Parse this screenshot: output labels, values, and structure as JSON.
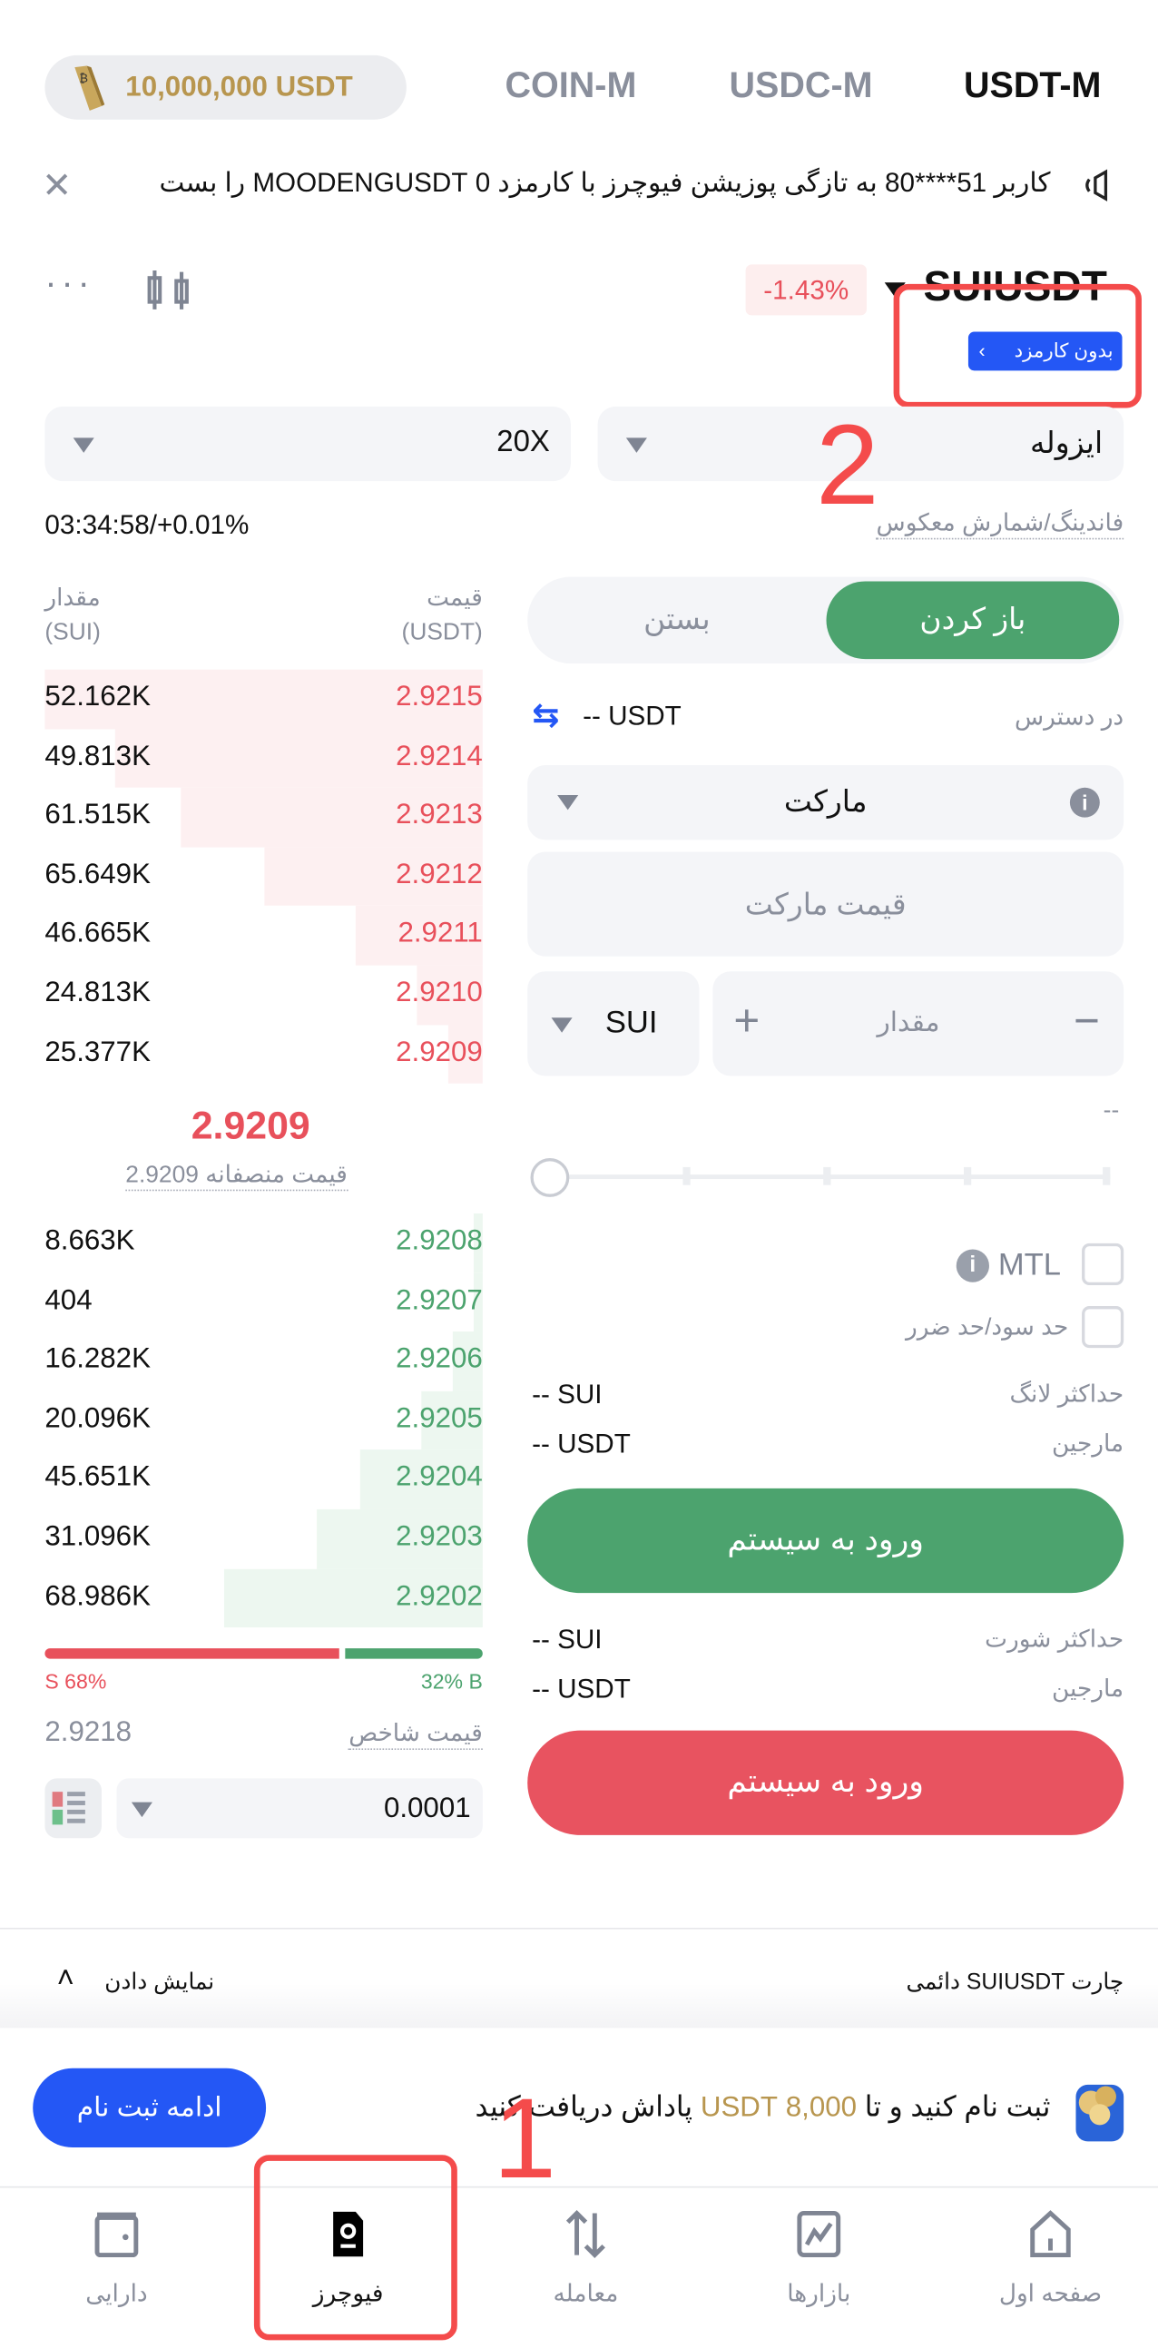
{
  "header": {
    "balance": "10,000,000 USDT",
    "tabs": [
      "COIN-M",
      "USDC-M",
      "USDT-M"
    ],
    "active_tab": "USDT-M"
  },
  "notice": {
    "text": "کاربر 51****80 به تازگی پوزیشن فیوچرز با کارمزد 0 MOODENGUSDT را بست"
  },
  "symbol": {
    "name": "SUIUSDT",
    "change": "-1.43%",
    "fee_badge": "بدون کارمزد"
  },
  "leverage": {
    "value": "20X"
  },
  "margin_mode": {
    "value": "ایزوله"
  },
  "funding": {
    "value": "03:34:58/+0.01%",
    "label": "فاندینگ/شمارش معکوس"
  },
  "orderbook": {
    "qty_header": "مقدار",
    "qty_unit": "(SUI)",
    "price_header": "قیمت",
    "price_unit": "(USDT)",
    "asks": [
      {
        "price": "2.9215",
        "qty": "52.162K",
        "depth": 1.0
      },
      {
        "price": "2.9214",
        "qty": "49.813K",
        "depth": 0.84
      },
      {
        "price": "2.9213",
        "qty": "61.515K",
        "depth": 0.69
      },
      {
        "price": "2.9212",
        "qty": "65.649K",
        "depth": 0.5
      },
      {
        "price": "2.9211",
        "qty": "46.665K",
        "depth": 0.29
      },
      {
        "price": "2.9210",
        "qty": "24.813K",
        "depth": 0.15
      },
      {
        "price": "2.9209",
        "qty": "25.377K",
        "depth": 0.08
      }
    ],
    "last_price": "2.9209",
    "fair_price_label": "قیمت منصفانه",
    "fair_price": "2.9209",
    "bids": [
      {
        "price": "2.9208",
        "qty": "8.663K",
        "depth": 0.02
      },
      {
        "price": "2.9207",
        "qty": "404",
        "depth": 0.02
      },
      {
        "price": "2.9206",
        "qty": "16.282K",
        "depth": 0.07
      },
      {
        "price": "2.9205",
        "qty": "20.096K",
        "depth": 0.14
      },
      {
        "price": "2.9204",
        "qty": "45.651K",
        "depth": 0.28
      },
      {
        "price": "2.9203",
        "qty": "31.096K",
        "depth": 0.38
      },
      {
        "price": "2.9202",
        "qty": "68.986K",
        "depth": 0.59
      }
    ],
    "sell_ratio": "S 68%",
    "buy_ratio": "32% B",
    "sell_fraction": 0.68,
    "index_price_label": "قیمت شاخص",
    "index_price": "2.9218",
    "precision": "0.0001"
  },
  "order": {
    "open": "باز کردن",
    "close": "بستن",
    "available_label": "در دسترس",
    "available_value": "-- USDT",
    "order_type": "مارکت",
    "market_price_placeholder": "قیمت مارکت",
    "qty_placeholder": "مقدار",
    "unit": "SUI",
    "qty_hint": "--",
    "slider_percent": 0,
    "mtl": "MTL",
    "tpsl": "حد سود/حد ضرر",
    "max_long_label": "حداکثر لانگ",
    "max_long": "-- SUI",
    "margin_label": "مارجین",
    "margin_long": "-- USDT",
    "long_button": "ورود به سیستم",
    "max_short_label": "حداکثر شورت",
    "max_short": "-- SUI",
    "margin_short": "-- USDT",
    "short_button": "ورود به سیستم"
  },
  "chart_bar": {
    "title": "چارت SUIUSDT دائمی",
    "toggle": "نمایش دادن"
  },
  "banner": {
    "text_pre": "ثبت نام کنید و تا",
    "amount": "8,000 USDT",
    "text_post": "پاداش دریافت کنید",
    "button": "ادامه ثبت نام"
  },
  "nav": {
    "items": [
      {
        "label": "صفحه اول"
      },
      {
        "label": "بازارها"
      },
      {
        "label": "معامله"
      },
      {
        "label": "فیوچرز"
      },
      {
        "label": "دارایی"
      }
    ],
    "active": "فیوچرز"
  },
  "annotations": {
    "one": "1",
    "two": "2"
  },
  "colors": {
    "green": "#4ca36e",
    "red": "#e8505b",
    "blue": "#2457f5",
    "gold": "#b8964f"
  }
}
